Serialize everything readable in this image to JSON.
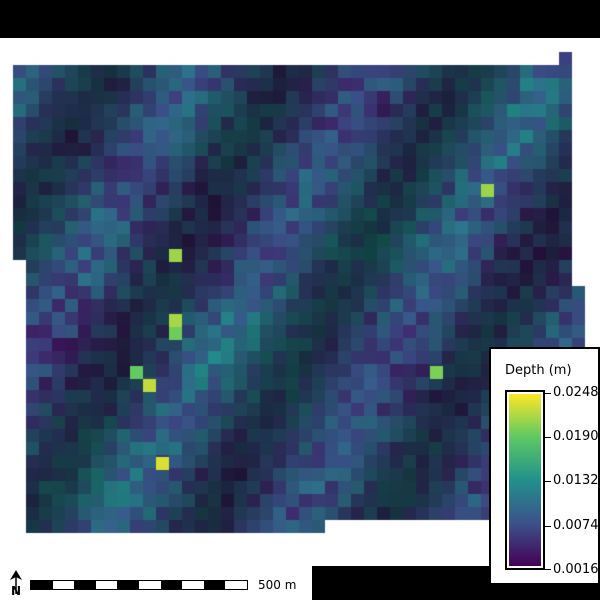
{
  "map": {
    "layer": "depth-raster",
    "colormap": [
      "#440154",
      "#3b528b",
      "#21918c",
      "#5ec962",
      "#fde725"
    ],
    "background": "#ffffff",
    "top_band_color": "#000000"
  },
  "legend": {
    "title": "Depth (m)",
    "ticks": [
      "0.0248",
      "0.0190",
      "0.0132",
      "0.0074",
      "0.0016"
    ],
    "min": 0.0016,
    "max": 0.0248
  },
  "scale_bar": {
    "label": "500 m"
  },
  "north_arrow": {
    "icon": "north-arrow-icon",
    "letter": "N"
  }
}
